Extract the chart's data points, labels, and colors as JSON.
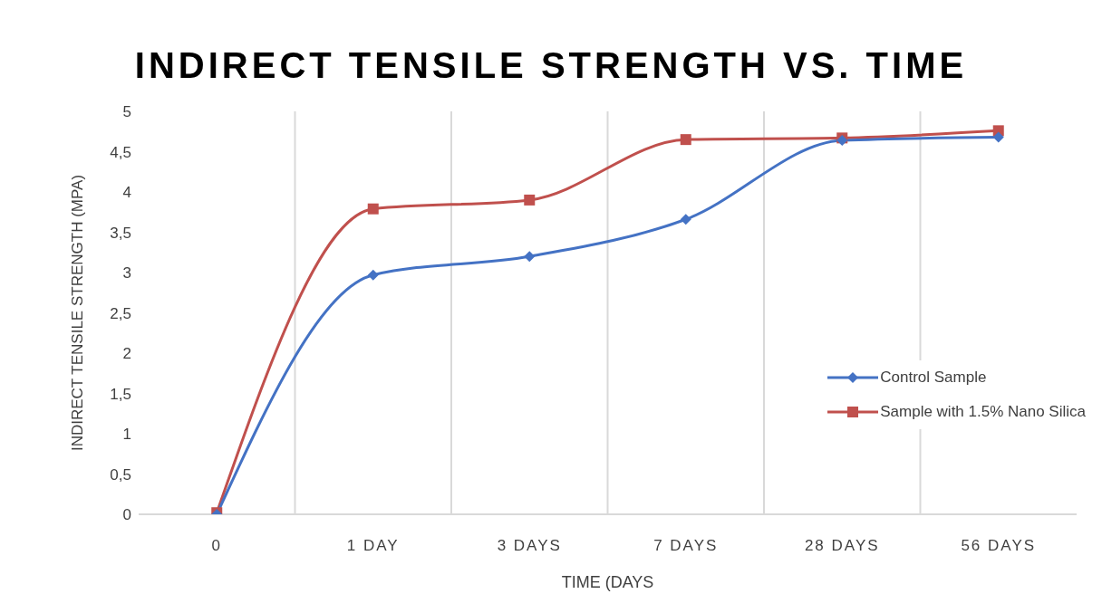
{
  "chart_data": {
    "type": "line",
    "title": "INDIRECT TENSILE STRENGTH VS. TIME",
    "xlabel": "TIME (DAYS",
    "ylabel": "INDIRECT TENSILE STRENGTH (MPA)",
    "categories": [
      "0",
      "1 DAY",
      "3 DAYS",
      "7 DAYS",
      "28 DAYS",
      "56 DAYS"
    ],
    "series": [
      {
        "name": "Control Sample",
        "color": "#4472c4",
        "marker": "diamond",
        "values": [
          0,
          2.97,
          3.2,
          3.66,
          4.64,
          4.68
        ]
      },
      {
        "name": "Sample with 1.5% Nano Silica",
        "color": "#c0504d",
        "marker": "square",
        "values": [
          0.02,
          3.79,
          3.9,
          4.65,
          4.67,
          4.76
        ]
      }
    ],
    "ylim": [
      0,
      5
    ],
    "yticks": [
      0,
      {
        "value": 0.5,
        "label": "0,5"
      },
      1,
      {
        "value": 1.5,
        "label": "1,5"
      },
      2,
      {
        "value": 2.5,
        "label": "2,5"
      },
      3,
      {
        "value": 3.5,
        "label": "3,5"
      },
      4,
      {
        "value": 4.5,
        "label": "4,5"
      },
      5
    ],
    "grid": "x",
    "legend": "right"
  }
}
